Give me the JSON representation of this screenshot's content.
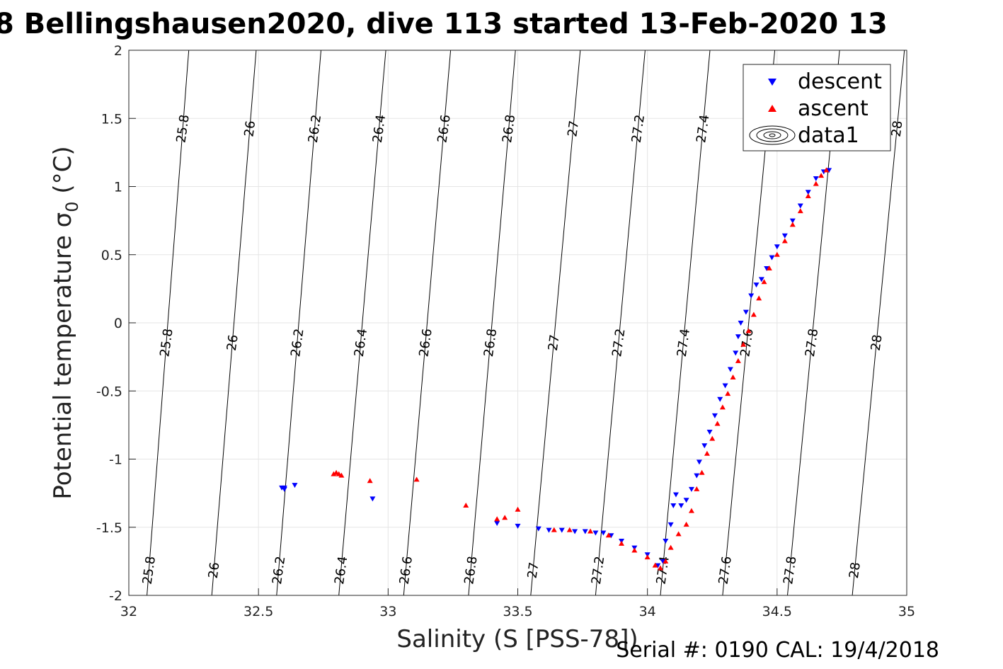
{
  "title": "8 Bellingshausen2020, dive 113 started 13-Feb-2020 13",
  "footer": {
    "serial": "Serial #: 0190  CAL: 19/4/2018"
  },
  "legend": {
    "placement": "top-right",
    "entries": [
      {
        "label": "descent",
        "marker": "triangle-down",
        "color": "#0000ff"
      },
      {
        "label": "ascent",
        "marker": "triangle-up",
        "color": "#ff0000"
      },
      {
        "label": "data1",
        "marker": "contour-icon",
        "color": "#000000"
      }
    ]
  },
  "chart_data": {
    "type": "scatter",
    "title": "8 Bellingshausen2020, dive 113 started 13-Feb-2020 13",
    "xlabel": "Salinity (S [PSS-78])",
    "ylabel": "Potential temperature σ",
    "ylabel_sub": "0",
    "ylabel_unit": " (°C)",
    "xlim": [
      32,
      35
    ],
    "ylim": [
      -2,
      2
    ],
    "xticks": [
      "32",
      "32.5",
      "33",
      "33.5",
      "34",
      "34.5",
      "35"
    ],
    "yticks": [
      "-2",
      "-1.5",
      "-1",
      "-0.5",
      "0",
      "0.5",
      "1",
      "1.5",
      "2"
    ],
    "grid": true,
    "colors": {
      "descent": "#0000ff",
      "ascent": "#ff0000",
      "contour": "#000000",
      "grid": "#e5e5e5"
    },
    "contours": [
      {
        "level": "25.8",
        "x_at_bottom": 32.07,
        "x_at_top": 32.04
      },
      {
        "level": "26",
        "x_at_bottom": 32.32,
        "x_at_top": 32.3
      },
      {
        "level": "26.2",
        "x_at_bottom": 32.57,
        "x_at_top": 32.55
      },
      {
        "level": "26.4",
        "x_at_bottom": 32.81,
        "x_at_top": 32.8
      },
      {
        "level": "26.6",
        "x_at_bottom": 33.06,
        "x_at_top": 33.05
      },
      {
        "level": "26.8",
        "x_at_bottom": 33.31,
        "x_at_top": 33.3
      },
      {
        "level": "27",
        "x_at_bottom": 33.55,
        "x_at_top": 33.55
      },
      {
        "level": "27.2",
        "x_at_bottom": 33.8,
        "x_at_top": 33.8
      },
      {
        "level": "27.4",
        "x_at_bottom": 34.05,
        "x_at_top": 34.05
      },
      {
        "level": "27.6",
        "x_at_bottom": 34.29,
        "x_at_top": 34.3
      },
      {
        "level": "27.8",
        "x_at_bottom": 34.54,
        "x_at_top": 34.55
      },
      {
        "level": "28",
        "x_at_bottom": 34.79,
        "x_at_top": 34.8
      }
    ],
    "series": [
      {
        "name": "descent",
        "marker": "triangle-down",
        "points": [
          [
            32.6,
            -1.21
          ],
          [
            32.59,
            -1.21
          ],
          [
            32.6,
            -1.22
          ],
          [
            32.64,
            -1.19
          ],
          [
            32.94,
            -1.29
          ],
          [
            33.42,
            -1.47
          ],
          [
            33.5,
            -1.49
          ],
          [
            33.58,
            -1.51
          ],
          [
            33.62,
            -1.52
          ],
          [
            33.67,
            -1.52
          ],
          [
            33.72,
            -1.53
          ],
          [
            33.76,
            -1.53
          ],
          [
            33.8,
            -1.54
          ],
          [
            33.83,
            -1.54
          ],
          [
            33.86,
            -1.56
          ],
          [
            33.9,
            -1.6
          ],
          [
            33.95,
            -1.65
          ],
          [
            34.0,
            -1.7
          ],
          [
            34.04,
            -1.78
          ],
          [
            34.06,
            -1.75
          ],
          [
            34.07,
            -1.6
          ],
          [
            34.09,
            -1.48
          ],
          [
            34.1,
            -1.34
          ],
          [
            34.11,
            -1.26
          ],
          [
            34.13,
            -1.34
          ],
          [
            34.15,
            -1.3
          ],
          [
            34.17,
            -1.22
          ],
          [
            34.19,
            -1.12
          ],
          [
            34.2,
            -1.02
          ],
          [
            34.22,
            -0.9
          ],
          [
            34.24,
            -0.8
          ],
          [
            34.26,
            -0.68
          ],
          [
            34.28,
            -0.56
          ],
          [
            34.3,
            -0.46
          ],
          [
            34.32,
            -0.34
          ],
          [
            34.34,
            -0.22
          ],
          [
            34.35,
            -0.1
          ],
          [
            34.36,
            0.0
          ],
          [
            34.38,
            0.08
          ],
          [
            34.4,
            0.2
          ],
          [
            34.42,
            0.28
          ],
          [
            34.44,
            0.32
          ],
          [
            34.46,
            0.4
          ],
          [
            34.48,
            0.48
          ],
          [
            34.5,
            0.56
          ],
          [
            34.53,
            0.64
          ],
          [
            34.56,
            0.75
          ],
          [
            34.59,
            0.86
          ],
          [
            34.62,
            0.96
          ],
          [
            34.65,
            1.06
          ],
          [
            34.68,
            1.11
          ],
          [
            34.7,
            1.12
          ]
        ]
      },
      {
        "name": "ascent",
        "marker": "triangle-up",
        "points": [
          [
            32.8,
            -1.1
          ],
          [
            32.81,
            -1.11
          ],
          [
            32.79,
            -1.11
          ],
          [
            32.82,
            -1.12
          ],
          [
            32.93,
            -1.16
          ],
          [
            33.11,
            -1.15
          ],
          [
            33.3,
            -1.34
          ],
          [
            33.42,
            -1.44
          ],
          [
            33.45,
            -1.43
          ],
          [
            33.5,
            -1.37
          ],
          [
            33.64,
            -1.52
          ],
          [
            33.7,
            -1.52
          ],
          [
            33.78,
            -1.53
          ],
          [
            33.85,
            -1.56
          ],
          [
            33.9,
            -1.62
          ],
          [
            33.95,
            -1.67
          ],
          [
            34.0,
            -1.72
          ],
          [
            34.03,
            -1.78
          ],
          [
            34.05,
            -1.8
          ],
          [
            34.07,
            -1.75
          ],
          [
            34.09,
            -1.65
          ],
          [
            34.12,
            -1.55
          ],
          [
            34.15,
            -1.48
          ],
          [
            34.17,
            -1.38
          ],
          [
            34.19,
            -1.22
          ],
          [
            34.21,
            -1.1
          ],
          [
            34.23,
            -0.96
          ],
          [
            34.25,
            -0.85
          ],
          [
            34.27,
            -0.74
          ],
          [
            34.29,
            -0.62
          ],
          [
            34.31,
            -0.52
          ],
          [
            34.33,
            -0.4
          ],
          [
            34.35,
            -0.28
          ],
          [
            34.37,
            -0.16
          ],
          [
            34.39,
            -0.06
          ],
          [
            34.41,
            0.06
          ],
          [
            34.43,
            0.18
          ],
          [
            34.45,
            0.3
          ],
          [
            34.47,
            0.4
          ],
          [
            34.5,
            0.5
          ],
          [
            34.53,
            0.6
          ],
          [
            34.56,
            0.72
          ],
          [
            34.59,
            0.82
          ],
          [
            34.62,
            0.93
          ],
          [
            34.65,
            1.02
          ],
          [
            34.67,
            1.08
          ],
          [
            34.69,
            1.12
          ]
        ]
      }
    ]
  }
}
